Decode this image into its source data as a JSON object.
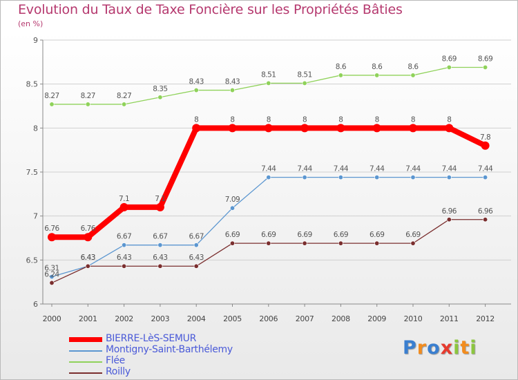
{
  "chart_data": {
    "type": "line",
    "title": "Evolution du Taux de Taxe Foncière sur les Propriétés Bâties",
    "subtitle": "(en %)",
    "x": [
      "2000",
      "2001",
      "2002",
      "2003",
      "2004",
      "2005",
      "2006",
      "2007",
      "2008",
      "2009",
      "2010",
      "2011",
      "2012"
    ],
    "ylim": [
      6,
      9
    ],
    "yticks": [
      "6",
      "6.5",
      "7",
      "7.5",
      "8",
      "8.5",
      "9"
    ],
    "ytick_values": [
      6,
      6.5,
      7,
      7.5,
      8,
      8.5,
      9
    ],
    "series": [
      {
        "name": "BIERRE-LèS-SEMUR",
        "color": "#ff0000",
        "emphasis": true,
        "values": [
          6.76,
          6.76,
          7.1,
          7.1,
          8,
          8,
          8,
          8,
          8,
          8,
          8,
          8,
          7.8
        ],
        "labels": [
          "6.76",
          "6.76",
          "7.1",
          "7.1",
          "8",
          "8",
          "8",
          "8",
          "8",
          "8",
          "8",
          "8",
          "7.8"
        ]
      },
      {
        "name": "Montigny-Saint-Barthélemy",
        "color": "#5b96d0",
        "emphasis": false,
        "values": [
          6.31,
          6.43,
          6.67,
          6.67,
          6.67,
          7.09,
          7.44,
          7.44,
          7.44,
          7.44,
          7.44,
          7.44,
          7.44
        ],
        "labels": [
          "6.31",
          "6.43",
          "6.67",
          "6.67",
          "6.67",
          "7.09",
          "7.44",
          "7.44",
          "7.44",
          "7.44",
          "7.44",
          "7.44",
          "7.44"
        ]
      },
      {
        "name": "Flée",
        "color": "#8fd25a",
        "emphasis": false,
        "values": [
          8.27,
          8.27,
          8.27,
          8.35,
          8.43,
          8.43,
          8.51,
          8.51,
          8.6,
          8.6,
          8.6,
          8.69,
          8.69
        ],
        "labels": [
          "8.27",
          "8.27",
          "8.27",
          "8.35",
          "8.43",
          "8.43",
          "8.51",
          "8.51",
          "8.6",
          "8.6",
          "8.6",
          "8.69",
          "8.69"
        ]
      },
      {
        "name": "Roilly",
        "color": "#7a2e2e",
        "emphasis": false,
        "values": [
          6.24,
          6.43,
          6.43,
          6.43,
          6.43,
          6.69,
          6.69,
          6.69,
          6.69,
          6.69,
          6.69,
          6.96,
          6.96
        ],
        "labels": [
          "6.24",
          "6.43",
          "6.43",
          "6.43",
          "6.43",
          "6.69",
          "6.69",
          "6.69",
          "6.69",
          "6.69",
          "6.69",
          "6.96",
          "6.96"
        ]
      }
    ],
    "legend_position": "bottom-left"
  },
  "logo": {
    "letters": [
      "P",
      "r",
      "o",
      "x",
      "i",
      "t",
      "i"
    ],
    "colors": [
      "#3a7fd0",
      "#f28c1e",
      "#3a7fd0",
      "#e63a2e",
      "#8cc63f",
      "#f28c1e",
      "#8cc63f"
    ]
  }
}
